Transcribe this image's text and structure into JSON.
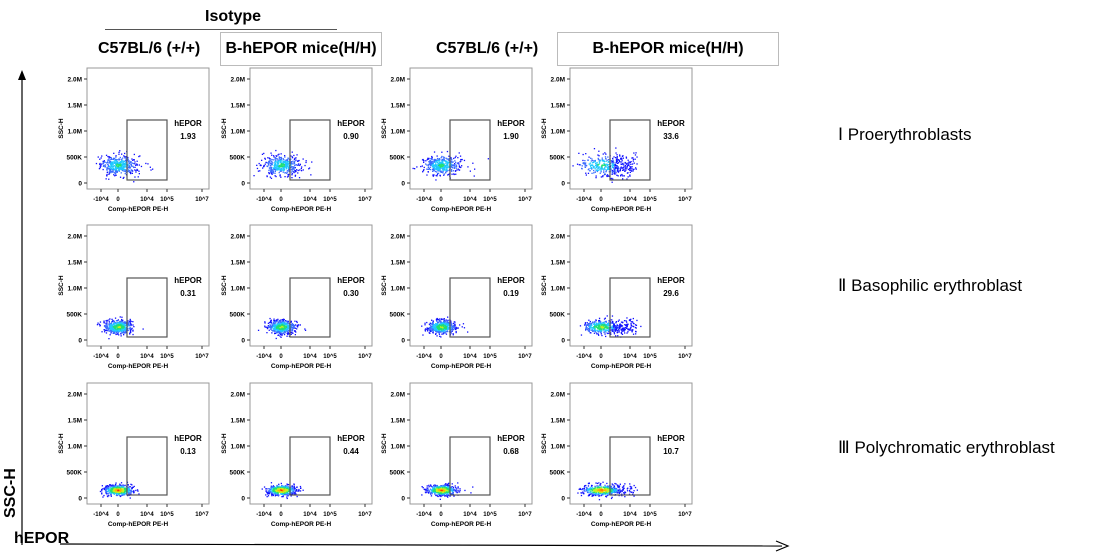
{
  "header": {
    "group_label": "Isotype",
    "columns": [
      "C57BL/6 (+/+)",
      "B-hEPOR mice(H/H)",
      "C57BL/6 (+/+)",
      "B-hEPOR mice(H/H)"
    ]
  },
  "rows": [
    "Ⅰ  Proerythroblasts",
    "Ⅱ  Basophilic erythroblast",
    "Ⅲ  Polychromatic erythroblast"
  ],
  "axes": {
    "y_arrow_label": "SSC-H",
    "x_arrow_label": "hEPOR"
  },
  "chart_data": {
    "type": "scatter",
    "title": "",
    "xlabel": "Comp-hEPOR PE-H",
    "ylabel": "SSC-H",
    "x_ticks": [
      "-10^4",
      "0",
      "10^4",
      "10^5",
      "10^7"
    ],
    "y_ticks": [
      "0",
      "500K",
      "1.0M",
      "1.5M",
      "2.0M"
    ],
    "ylim": [
      0,
      2000000
    ],
    "gate_label": "hEPOR",
    "panels": [
      {
        "row": 0,
        "column": 0,
        "gate_value": "1.93"
      },
      {
        "row": 0,
        "column": 1,
        "gate_value": "0.90"
      },
      {
        "row": 0,
        "column": 2,
        "gate_value": "1.90"
      },
      {
        "row": 0,
        "column": 3,
        "gate_value": "33.6"
      },
      {
        "row": 1,
        "column": 0,
        "gate_value": "0.31"
      },
      {
        "row": 1,
        "column": 1,
        "gate_value": "0.30"
      },
      {
        "row": 1,
        "column": 2,
        "gate_value": "0.19"
      },
      {
        "row": 1,
        "column": 3,
        "gate_value": "29.6"
      },
      {
        "row": 2,
        "column": 0,
        "gate_value": "0.13"
      },
      {
        "row": 2,
        "column": 1,
        "gate_value": "0.44"
      },
      {
        "row": 2,
        "column": 2,
        "gate_value": "0.68"
      },
      {
        "row": 2,
        "column": 3,
        "gate_value": "10.7"
      }
    ]
  }
}
